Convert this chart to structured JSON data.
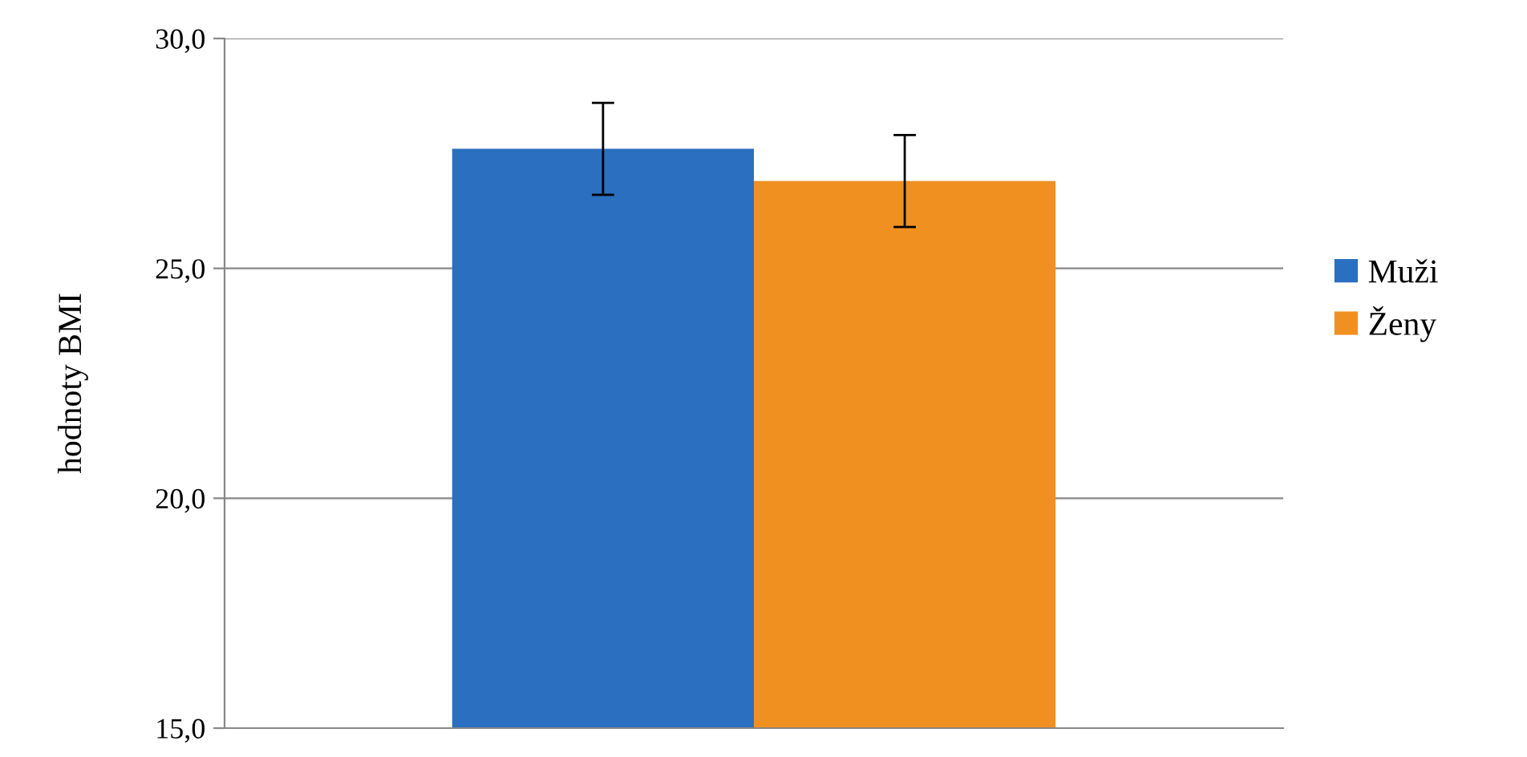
{
  "chart_data": {
    "type": "bar",
    "ylabel": "hodnoty BMI",
    "categories": [
      null
    ],
    "series": [
      {
        "name": "Muži",
        "color": "#2a6fc0",
        "values": [
          27.6
        ],
        "errors": [
          1.0
        ]
      },
      {
        "name": "Ženy",
        "color": "#f09020",
        "values": [
          26.9
        ],
        "errors": [
          1.0
        ]
      }
    ],
    "ylim": [
      15,
      30
    ],
    "yticks": [
      {
        "value": 15,
        "label": "15,0"
      },
      {
        "value": 20,
        "label": "20,0"
      },
      {
        "value": 25,
        "label": "25,0"
      },
      {
        "value": 30,
        "label": "30,0"
      }
    ],
    "grid": "y",
    "legend": "right"
  }
}
